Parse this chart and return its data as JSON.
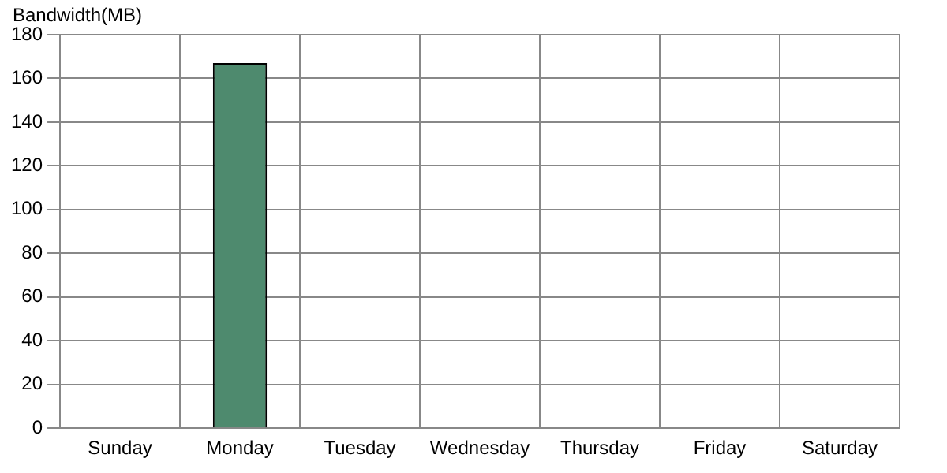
{
  "chart_data": {
    "type": "bar",
    "ylabel": "Bandwidth(MB)",
    "categories": [
      "Sunday",
      "Monday",
      "Tuesday",
      "Wednesday",
      "Thursday",
      "Friday",
      "Saturday"
    ],
    "values": [
      0,
      167,
      0,
      0,
      0,
      0,
      0
    ],
    "color": "#4e8a6e",
    "ylim": [
      0,
      180
    ],
    "yticks": [
      0,
      20,
      40,
      60,
      80,
      100,
      120,
      140,
      160,
      180
    ],
    "grid": true,
    "legend": false
  }
}
